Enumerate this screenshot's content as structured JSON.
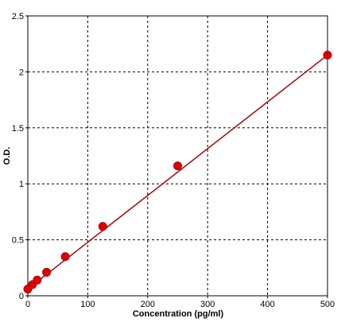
{
  "chart_data": {
    "type": "line",
    "xlabel": "Concentration (pg/ml)",
    "ylabel": "O.D.",
    "xlim": [
      0,
      500
    ],
    "ylim": [
      0,
      2.5
    ],
    "x_ticks": [
      "0",
      "100",
      "200",
      "300",
      "400",
      "500"
    ],
    "y_ticks": [
      "0",
      "0.5",
      "1",
      "1.5",
      "2",
      "2.5"
    ],
    "grid": true,
    "series": [
      {
        "x": [
          0,
          7.8,
          15.6,
          31.25,
          62.5,
          125,
          250,
          500
        ],
        "y": [
          0.06,
          0.1,
          0.14,
          0.21,
          0.35,
          0.62,
          1.16,
          2.15
        ],
        "color": "#e00000",
        "marker": "circle"
      }
    ],
    "fit_line": {
      "x": [
        0,
        500
      ],
      "y": [
        0.06,
        2.15
      ],
      "color": "#b00000"
    }
  }
}
